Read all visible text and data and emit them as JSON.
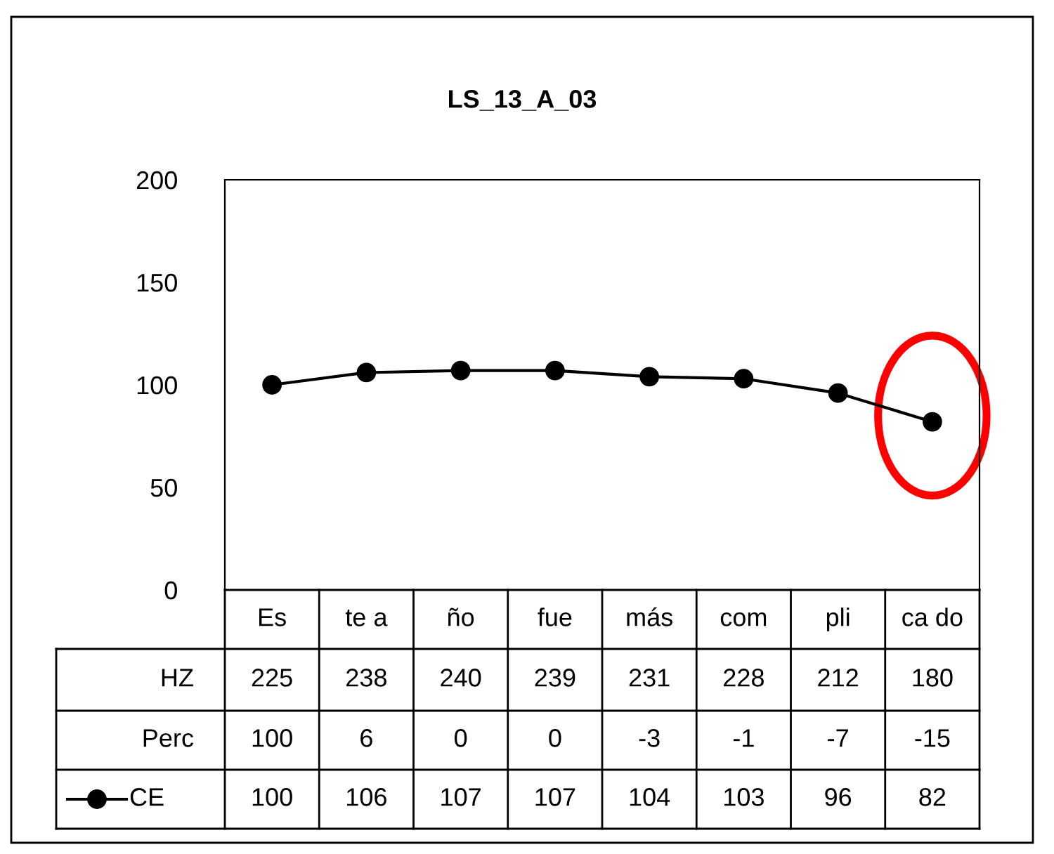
{
  "chart_data": {
    "type": "line",
    "title": "LS_13_A_03",
    "categories": [
      "Es",
      "te a",
      "ño",
      "fue",
      "más",
      "com",
      "pli",
      "ca do"
    ],
    "series": [
      {
        "name": "CE",
        "color": "#000000",
        "values": [
          100,
          106,
          107,
          107,
          104,
          103,
          96,
          82
        ]
      }
    ],
    "annotations": [
      "HZ",
      "225",
      "238",
      "240",
      "239",
      "231",
      "228",
      "212",
      "180",
      "Perc",
      "100",
      "6",
      "0",
      "0",
      "-3",
      "-1",
      "-7",
      "-15"
    ],
    "ylim": [
      0,
      200
    ],
    "yticks": [
      0,
      50,
      100,
      150,
      200
    ],
    "grid": false,
    "marker": "circle",
    "line_style": "solid",
    "data_labels": true,
    "legend": "bottom"
  }
}
